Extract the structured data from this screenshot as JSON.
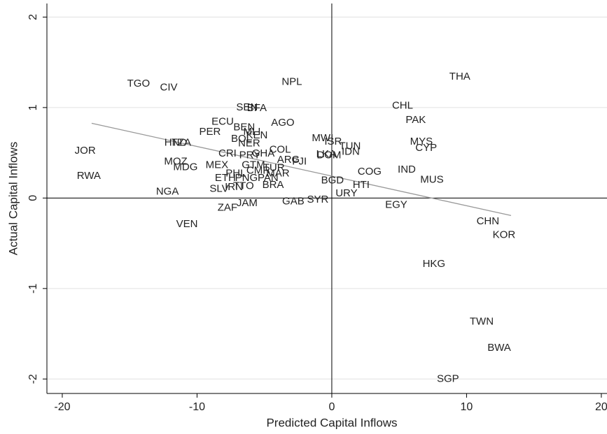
{
  "chart_data": {
    "type": "scatter",
    "xlabel": "Predicted Capital Inflows",
    "ylabel": "Actual Capital Inflows",
    "xlim": [
      -21.14,
      20.42
    ],
    "ylim": [
      -2.16,
      2.15
    ],
    "xticks": [
      -20,
      -10,
      0,
      10,
      20
    ],
    "yticks": [
      -2,
      -1,
      0,
      1,
      2
    ],
    "grid": true,
    "labels": [
      "TGO",
      "CIV",
      "NPL",
      "THA",
      "SEN",
      "BFA",
      "CHL",
      "ECU",
      "AGO",
      "PAK",
      "BEN",
      "MLI",
      "PER",
      "KEN",
      "BOL",
      "NER",
      "HND",
      "TZA",
      "MWI",
      "ISR",
      "TUN",
      "MYS",
      "CYP",
      "JOR",
      "IDN",
      "COL",
      "CRI",
      "LKA",
      "DOM",
      "PRY",
      "GHA",
      "FJI",
      "ARG",
      "MOZ",
      "MEX",
      "GTM",
      "MDG",
      "IND",
      "COG",
      "PHL",
      "CMR",
      "TUR",
      "MAR",
      "RWA",
      "ETH",
      "PNG",
      "PAN",
      "MUS",
      "BGD",
      "HTI",
      "IRN",
      "TTO",
      "BRA",
      "SLV",
      "NGA",
      "URY",
      "SYR",
      "GAB",
      "JAM",
      "EGY",
      "ZAF",
      "CHN",
      "VEN",
      "KOR",
      "HKG",
      "TWN",
      "BWA",
      "SGP"
    ],
    "x": [
      -14.34,
      -12.1,
      -2.96,
      9.5,
      -6.29,
      -5.56,
      5.25,
      -8.1,
      -3.64,
      6.23,
      -6.5,
      -5.92,
      -9.04,
      -5.56,
      -6.7,
      -6.13,
      -11.58,
      -11.17,
      -0.68,
      0.1,
      1.35,
      6.65,
      7.0,
      -18.3,
      1.4,
      -3.84,
      -7.74,
      -0.42,
      -0.21,
      -6.08,
      -5.09,
      -2.4,
      -3.22,
      -11.58,
      -8.52,
      -5.82,
      -10.86,
      5.56,
      2.8,
      -7.12,
      -5.45,
      -4.3,
      -4.0,
      -18.03,
      -7.9,
      -6.34,
      -4.73,
      7.43,
      0.05,
      2.18,
      -7.27,
      -6.55,
      -4.36,
      -8.36,
      -12.2,
      1.09,
      -1.04,
      -2.86,
      -6.29,
      4.78,
      -7.74,
      11.58,
      -10.75,
      12.78,
      7.58,
      11.12,
      12.42,
      8.62
    ],
    "y": [
      1.26,
      1.22,
      1.28,
      1.34,
      1.0,
      0.99,
      1.02,
      0.84,
      0.83,
      0.86,
      0.78,
      0.73,
      0.73,
      0.69,
      0.65,
      0.6,
      0.61,
      0.61,
      0.66,
      0.62,
      0.57,
      0.62,
      0.55,
      0.52,
      0.51,
      0.53,
      0.49,
      0.48,
      0.47,
      0.47,
      0.49,
      0.4,
      0.42,
      0.4,
      0.36,
      0.36,
      0.34,
      0.31,
      0.29,
      0.27,
      0.3,
      0.33,
      0.27,
      0.24,
      0.22,
      0.22,
      0.22,
      0.2,
      0.19,
      0.14,
      0.12,
      0.13,
      0.14,
      0.1,
      0.07,
      0.05,
      -0.02,
      -0.04,
      -0.06,
      -0.08,
      -0.11,
      -0.26,
      -0.29,
      -0.41,
      -0.73,
      -1.37,
      -1.66,
      -2.0
    ],
    "fit": {
      "x": [
        -17.82,
        13.3
      ],
      "y": [
        0.826,
        -0.193
      ],
      "color": "#999999"
    }
  }
}
